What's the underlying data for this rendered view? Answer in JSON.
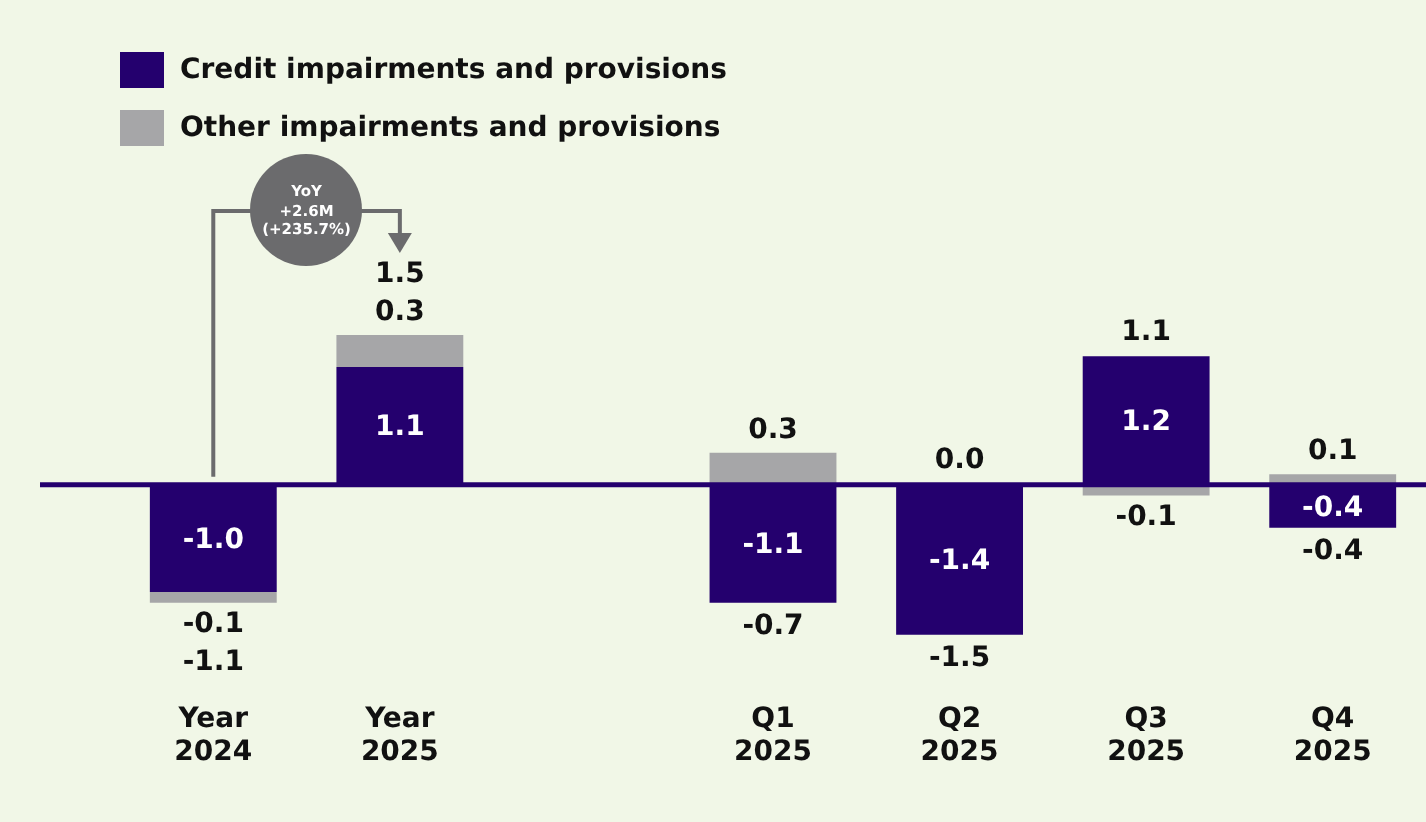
{
  "chart_data": {
    "type": "bar",
    "stacked": true,
    "categories": [
      "Year 2024",
      "Year 2025",
      null,
      "Q1 2025",
      "Q2 2025",
      "Q3 2025",
      "Q4 2025"
    ],
    "series": [
      {
        "name": "Credit impairments and provisions",
        "color": "#24006e",
        "values": [
          -1.0,
          1.1,
          null,
          -1.1,
          -1.4,
          1.2,
          -0.4
        ],
        "value_labels": [
          "-1.0",
          "1.1",
          null,
          "-1.1",
          "-1.4",
          "1.2",
          "-0.4"
        ]
      },
      {
        "name": "Other impairments and provisions",
        "color": "#a6a6a8",
        "values": [
          -0.1,
          0.3,
          null,
          0.3,
          0.0,
          -0.1,
          0.1
        ],
        "value_labels": [
          "-0.1",
          "0.3",
          null,
          "0.3",
          "0.0",
          "-0.1",
          "0.1"
        ]
      }
    ],
    "totals": [
      "-1.1",
      "1.5",
      null,
      "-0.7",
      "-1.5",
      "1.1",
      "-0.4"
    ],
    "ref_lines": [
      {
        "axis": "y",
        "value": 0,
        "color": "#24006e"
      }
    ],
    "annotations": [
      "YoY\n+2.6M\n(+235.7%)"
    ],
    "legend": "top left"
  }
}
